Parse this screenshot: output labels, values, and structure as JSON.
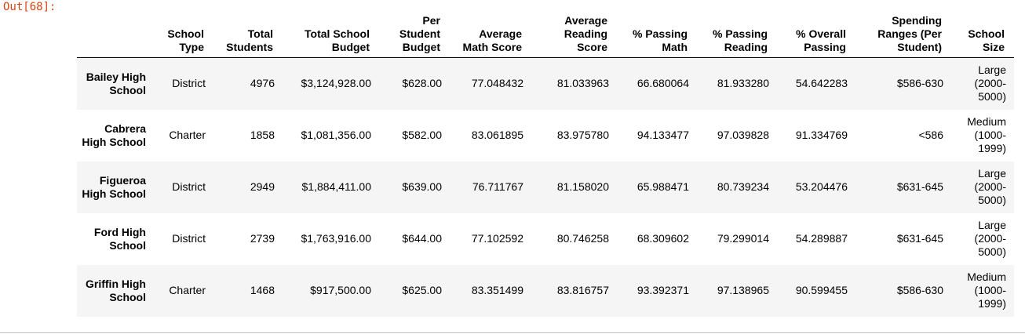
{
  "prompt": "Out[68]:",
  "columns": [
    "School Type",
    "Total Students",
    "Total School Budget",
    "Per Student Budget",
    "Average Math Score",
    "Average Reading Score",
    "% Passing Math",
    "% Passing Reading",
    "% Overall Passing",
    "Spending Ranges (Per Student)",
    "School Size"
  ],
  "rows": [
    {
      "name": "Bailey High School",
      "cells": [
        "District",
        "4976",
        "$3,124,928.00",
        "$628.00",
        "77.048432",
        "81.033963",
        "66.680064",
        "81.933280",
        "54.642283",
        "$586-630",
        "Large (2000-5000)"
      ]
    },
    {
      "name": "Cabrera High School",
      "cells": [
        "Charter",
        "1858",
        "$1,081,356.00",
        "$582.00",
        "83.061895",
        "83.975780",
        "94.133477",
        "97.039828",
        "91.334769",
        "<586",
        "Medium (1000-1999)"
      ]
    },
    {
      "name": "Figueroa High School",
      "cells": [
        "District",
        "2949",
        "$1,884,411.00",
        "$639.00",
        "76.711767",
        "81.158020",
        "65.988471",
        "80.739234",
        "53.204476",
        "$631-645",
        "Large (2000-5000)"
      ]
    },
    {
      "name": "Ford High School",
      "cells": [
        "District",
        "2739",
        "$1,763,916.00",
        "$644.00",
        "77.102592",
        "80.746258",
        "68.309602",
        "79.299014",
        "54.289887",
        "$631-645",
        "Large (2000-5000)"
      ]
    },
    {
      "name": "Griffin High School",
      "cells": [
        "Charter",
        "1468",
        "$917,500.00",
        "$625.00",
        "83.351499",
        "83.816757",
        "93.392371",
        "97.138965",
        "90.599455",
        "$586-630",
        "Medium (1000-1999)"
      ]
    }
  ]
}
